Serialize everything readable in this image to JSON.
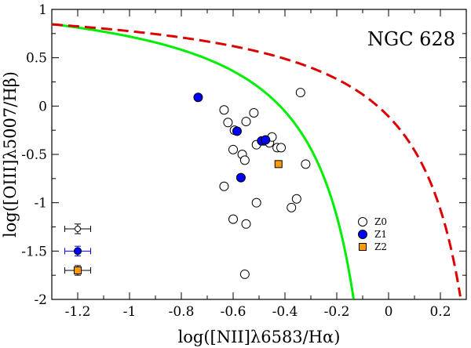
{
  "chart_data": {
    "type": "scatter",
    "title": "NGC 628",
    "xlabel": "log([NII]λ6583/Hα)",
    "ylabel": "log([OIII]λ5007/Hβ)",
    "xlim": [
      -1.3,
      0.3
    ],
    "ylim": [
      -2,
      1
    ],
    "x_ticks": [
      -1.2,
      -1,
      -0.8,
      -0.6,
      -0.4,
      -0.2,
      0,
      0.2
    ],
    "x_tick_labels": [
      "-1.2",
      "-1",
      "-0.8",
      "-0.6",
      "-0.4",
      "-0.2",
      "0",
      "0.2"
    ],
    "y_ticks": [
      1,
      0.5,
      0,
      -0.5,
      -1,
      -1.5,
      -2
    ],
    "y_tick_labels": [
      "1",
      "0.5",
      "0",
      "-0.5",
      "-1",
      "-1.5",
      "-2"
    ],
    "legend_position": "bottom-right",
    "series": [
      {
        "name": "Z0",
        "marker": "open-circle",
        "color": "#000000",
        "fill": "#ffffff",
        "x": [
          -0.635,
          -0.62,
          -0.595,
          -0.55,
          -0.52,
          -0.6,
          -0.565,
          -0.555,
          -0.51,
          -0.48,
          -0.46,
          -0.45,
          -0.43,
          -0.415,
          -0.34,
          -0.32,
          -0.635,
          -0.51,
          -0.6,
          -0.55,
          -0.375,
          -0.355,
          -0.555
        ],
        "y": [
          -0.04,
          -0.17,
          -0.25,
          -0.16,
          -0.07,
          -0.45,
          -0.5,
          -0.56,
          -0.4,
          -0.36,
          -0.38,
          -0.32,
          -0.43,
          -0.43,
          0.14,
          -0.6,
          -0.83,
          -1.0,
          -1.17,
          -1.22,
          -1.05,
          -0.96,
          -1.74
        ]
      },
      {
        "name": "Z1",
        "marker": "filled-circle",
        "color": "#0000ff",
        "fill": "#0000ff",
        "x": [
          -0.735,
          -0.585,
          -0.49,
          -0.475,
          -0.57
        ],
        "y": [
          0.09,
          -0.26,
          -0.36,
          -0.35,
          -0.74
        ]
      },
      {
        "name": "Z2",
        "marker": "filled-square",
        "color": "#ff9900",
        "fill": "#ff9900",
        "x": [
          -0.425
        ],
        "y": [
          -0.6
        ]
      }
    ],
    "error_bars": [
      {
        "series": "Z0",
        "x": -1.2,
        "y": -1.27,
        "xerr": 0.05,
        "yerr": 0.05,
        "color": "#000000"
      },
      {
        "series": "Z1",
        "x": -1.2,
        "y": -1.5,
        "xerr": 0.05,
        "yerr": 0.05,
        "color": "#0000ff"
      },
      {
        "series": "Z2",
        "x": -1.2,
        "y": -1.7,
        "xerr": 0.05,
        "yerr": 0.05,
        "color": "#000000"
      }
    ],
    "curves": [
      {
        "name": "Kauffmann et al. (2003) line",
        "style": "solid",
        "color": "#00ee00",
        "equation": "0.61/(x-0.05)+1.3",
        "x_range": [
          -1.3,
          -0.135
        ]
      },
      {
        "name": "Kewley et al. (2001) line",
        "style": "dashed",
        "color": "#dd0000",
        "equation": "0.61/(x-0.47)+1.19",
        "x_range": [
          -1.3,
          0.283
        ]
      }
    ]
  }
}
